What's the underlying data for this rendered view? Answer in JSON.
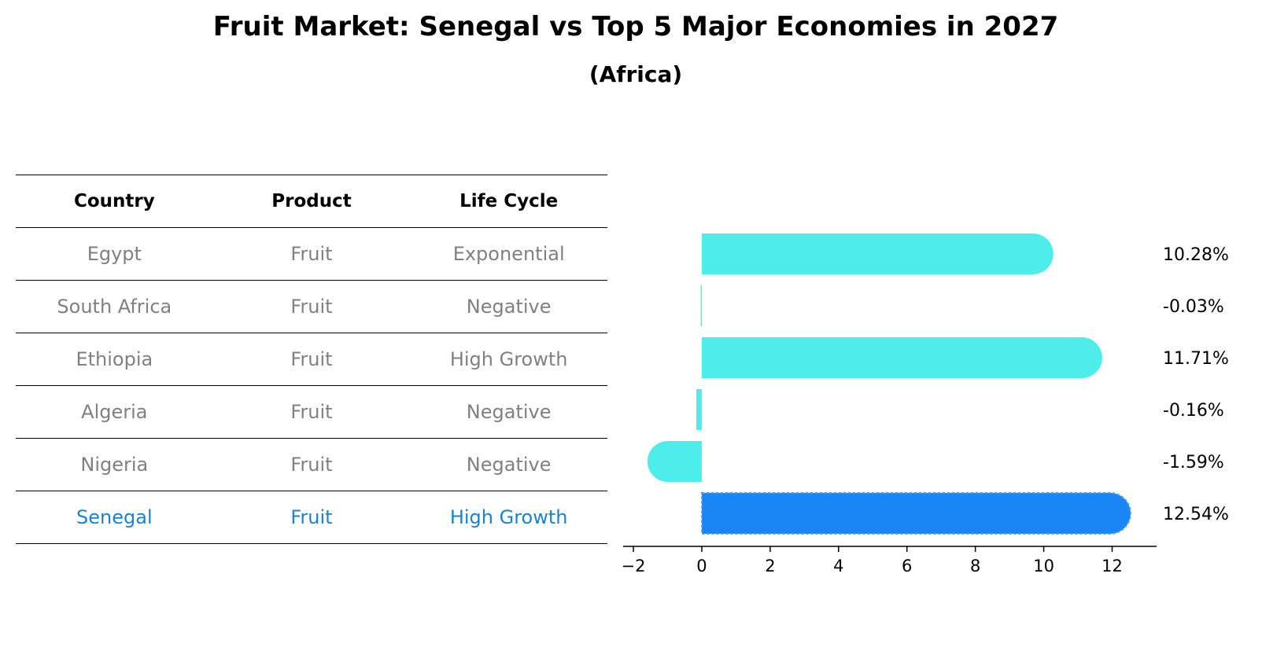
{
  "title": "Fruit Market: Senegal vs Top 5 Major Economies in 2027",
  "subtitle": "(Africa)",
  "table": {
    "headers": [
      "Country",
      "Product",
      "Life Cycle"
    ],
    "rows": [
      {
        "country": "Egypt",
        "product": "Fruit",
        "life_cycle": "Exponential"
      },
      {
        "country": "South Africa",
        "product": "Fruit",
        "life_cycle": "Negative"
      },
      {
        "country": "Ethiopia",
        "product": "Fruit",
        "life_cycle": "High Growth"
      },
      {
        "country": "Algeria",
        "product": "Fruit",
        "life_cycle": "Negative"
      },
      {
        "country": "Nigeria",
        "product": "Fruit",
        "life_cycle": "Negative"
      },
      {
        "country": "Senegal",
        "product": "Fruit",
        "life_cycle": "High Growth"
      }
    ]
  },
  "colors": {
    "bar": "#4deeea",
    "highlight_bar": "#1a85f5",
    "highlight_text": "#1a82d0",
    "muted_text": "#808080"
  },
  "chart_data": {
    "type": "bar",
    "orientation": "horizontal",
    "title": "Fruit Market: Senegal vs Top 5 Major Economies in 2027",
    "subtitle": "(Africa)",
    "categories": [
      "Egypt",
      "South Africa",
      "Ethiopia",
      "Algeria",
      "Nigeria",
      "Senegal"
    ],
    "values": [
      10.28,
      -0.03,
      11.71,
      -0.16,
      -1.59,
      12.54
    ],
    "value_labels": [
      "10.28%",
      "-0.03%",
      "11.71%",
      "-0.16%",
      "-1.59%",
      "12.54%"
    ],
    "highlight": "Senegal",
    "xlim": [
      -2.3,
      13.3
    ],
    "xticks": [
      -2,
      0,
      2,
      4,
      6,
      8,
      10,
      12
    ],
    "xtick_labels": [
      "−2",
      "0",
      "2",
      "4",
      "6",
      "8",
      "10",
      "12"
    ],
    "xlabel": "",
    "ylabel": "",
    "grid": false
  }
}
